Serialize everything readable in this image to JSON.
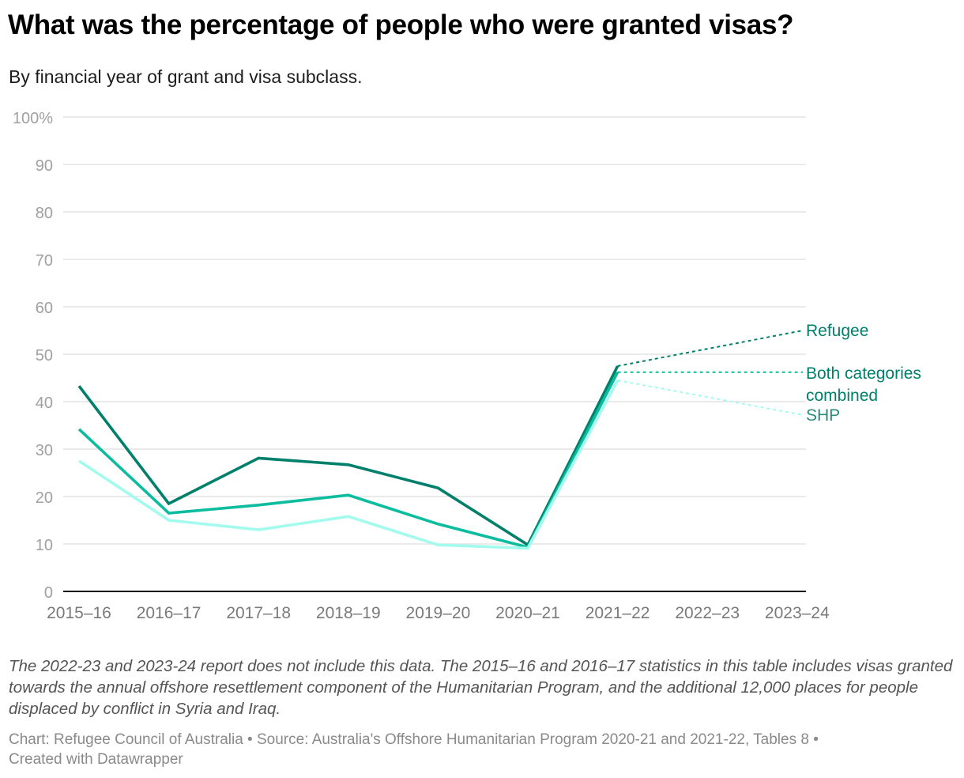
{
  "header": {
    "title": "What was the percentage of people who were granted visas?",
    "subtitle": "By financial year of grant and visa subclass."
  },
  "notes": "The 2022-23 and 2023-24 report does not include this data. The 2015–16 and 2016–17 statistics in this table includes visas granted towards the annual offshore resettlement component of the Humanitarian Program, and the additional 12,000 places for people displaced by conflict in Syria and Iraq.",
  "footer": {
    "line1": "Chart: Refugee Council of Australia • Source: Australia's Offshore Humanitarian Program 2020-21 and 2021-22, Tables 8 •",
    "line2": "Created with Datawrapper"
  },
  "chart_data": {
    "type": "line",
    "title": "What was the percentage of people who were granted visas?",
    "subtitle": "By financial year of grant and visa subclass.",
    "xlabel": "",
    "ylabel": "",
    "categories": [
      "2015–16",
      "2016–17",
      "2017–18",
      "2018–19",
      "2019–20",
      "2020–21",
      "2021–22",
      "2022–23",
      "2023–24"
    ],
    "ylim": [
      0,
      100
    ],
    "yticks": [
      0,
      10,
      20,
      30,
      40,
      50,
      60,
      70,
      80,
      90,
      100
    ],
    "ytick_labels": [
      "0",
      "10",
      "20",
      "30",
      "40",
      "50",
      "60",
      "70",
      "80",
      "90",
      "100%"
    ],
    "grid": true,
    "legend": "direct labels at right",
    "series": [
      {
        "name": "Refugee",
        "label": "Refugee",
        "color": "#00806a",
        "values": [
          43.3,
          18.5,
          28.1,
          26.7,
          21.8,
          9.8,
          47.5,
          null,
          null
        ],
        "label_anchor": 55
      },
      {
        "name": "Both categories combined",
        "label": "Both categories combined",
        "color": "#0cbc9e",
        "values": [
          34.2,
          16.5,
          18.2,
          20.3,
          14.2,
          9.3,
          46.2,
          null,
          null
        ],
        "label_anchor": 46.2
      },
      {
        "name": "SHP",
        "label": "SHP",
        "color": "#a3fbee",
        "values": [
          27.5,
          15.0,
          13.0,
          15.8,
          9.8,
          9.1,
          44.5,
          null,
          null
        ],
        "label_anchor": 37.2
      }
    ],
    "label_colors": [
      "#00806a",
      "#00806a",
      "#2a8a7a"
    ]
  }
}
